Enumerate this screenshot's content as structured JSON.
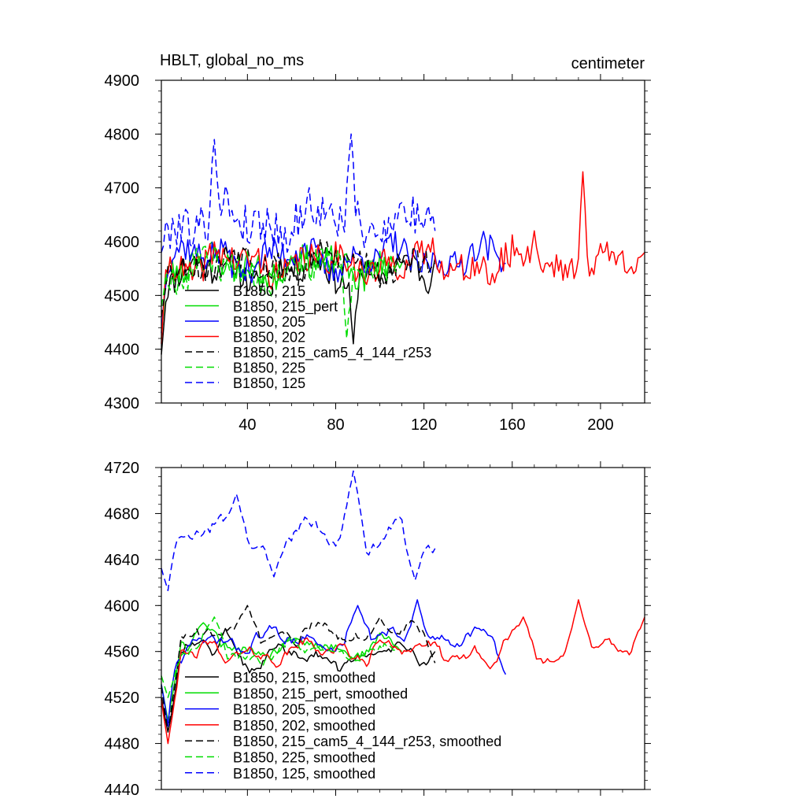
{
  "chart_data": [
    {
      "type": "line",
      "title_left": "HBLT, global_no_ms",
      "title_right": "centimeter",
      "xlabel": "",
      "ylabel": "",
      "xlim": [
        1,
        220
      ],
      "ylim": [
        4300,
        4900
      ],
      "xticks": [
        40,
        80,
        120,
        160,
        200
      ],
      "xtick_labels": [
        "40",
        "80",
        "120",
        "160",
        "200"
      ],
      "yticks": [
        4300,
        4400,
        4500,
        4600,
        4700,
        4800,
        4900
      ],
      "ytick_labels": [
        "4300",
        "4400",
        "4500",
        "4600",
        "4700",
        "4800",
        "4900"
      ],
      "legend_position": "bottom-left",
      "series": [
        {
          "name": "B1850, 215",
          "color": "#000000",
          "dash": "solid",
          "length": 125,
          "level": 4545,
          "amp": 45,
          "noise": 28,
          "seed": 11,
          "anchors": [
            [
              1,
              4390
            ],
            [
              30,
              4560
            ],
            [
              88,
              4410
            ],
            [
              110,
              4560
            ],
            [
              125,
              4570
            ]
          ]
        },
        {
          "name": "B1850, 215_pert",
          "color": "#00dd00",
          "dash": "solid",
          "length": 110,
          "level": 4555,
          "amp": 40,
          "noise": 28,
          "seed": 23,
          "anchors": [
            [
              1,
              4420
            ],
            [
              15,
              4580
            ],
            [
              60,
              4570
            ],
            [
              110,
              4560
            ]
          ]
        },
        {
          "name": "B1850, 205",
          "color": "#0000ff",
          "dash": "solid",
          "length": 157,
          "level": 4570,
          "amp": 45,
          "noise": 28,
          "seed": 37,
          "anchors": [
            [
              1,
              4430
            ],
            [
              30,
              4600
            ],
            [
              100,
              4570
            ],
            [
              157,
              4560
            ]
          ]
        },
        {
          "name": "B1850, 202",
          "color": "#ff0000",
          "dash": "solid",
          "length": 220,
          "level": 4560,
          "amp": 45,
          "noise": 30,
          "seed": 41,
          "anchors": [
            [
              1,
              4410
            ],
            [
              60,
              4570
            ],
            [
              150,
              4520
            ],
            [
              170,
              4620
            ],
            [
              192,
              4730
            ],
            [
              220,
              4580
            ]
          ]
        },
        {
          "name": "B1850, 215_cam5_4_144_r253",
          "color": "#000000",
          "dash": "dashed",
          "length": 125,
          "level": 4560,
          "amp": 40,
          "noise": 28,
          "seed": 53,
          "anchors": [
            [
              1,
              4460
            ],
            [
              40,
              4590
            ],
            [
              110,
              4560
            ],
            [
              125,
              4560
            ]
          ]
        },
        {
          "name": "B1850, 225",
          "color": "#00dd00",
          "dash": "dashed",
          "length": 108,
          "level": 4550,
          "amp": 45,
          "noise": 30,
          "seed": 67,
          "anchors": [
            [
              1,
              4480
            ],
            [
              20,
              4590
            ],
            [
              85,
              4420
            ],
            [
              108,
              4540
            ]
          ]
        },
        {
          "name": "B1850, 125",
          "color": "#0000ff",
          "dash": "dashed",
          "length": 125,
          "level": 4640,
          "amp": 55,
          "noise": 40,
          "seed": 79,
          "anchors": [
            [
              1,
              4580
            ],
            [
              25,
              4790
            ],
            [
              87,
              4800
            ],
            [
              125,
              4620
            ]
          ]
        }
      ]
    },
    {
      "type": "line",
      "title_left": "",
      "title_right": "",
      "xlabel": "",
      "ylabel": "",
      "xlim": [
        1,
        220
      ],
      "ylim": [
        4440,
        4720
      ],
      "xticks": [
        40,
        80,
        120,
        160,
        200
      ],
      "xtick_labels": [],
      "yticks": [
        4440,
        4480,
        4520,
        4560,
        4600,
        4640,
        4680,
        4720
      ],
      "ytick_labels": [
        "4440",
        "4480",
        "4520",
        "4560",
        "4600",
        "4640",
        "4680",
        "4720"
      ],
      "legend_position": "bottom-left",
      "series": [
        {
          "name": "B1850, 215, smoothed",
          "color": "#000000",
          "dash": "solid",
          "length": 125,
          "level": 4555,
          "amp": 20,
          "noise": 9,
          "seed": 12,
          "anchors": [
            [
              4,
              4490
            ],
            [
              20,
              4570
            ],
            [
              30,
              4580
            ],
            [
              100,
              4560
            ],
            [
              125,
              4560
            ]
          ]
        },
        {
          "name": "B1850, 215_pert, smoothed",
          "color": "#00dd00",
          "dash": "solid",
          "length": 110,
          "level": 4565,
          "amp": 18,
          "noise": 9,
          "seed": 24,
          "anchors": [
            [
              4,
              4500
            ],
            [
              20,
              4585
            ],
            [
              60,
              4570
            ],
            [
              110,
              4560
            ]
          ]
        },
        {
          "name": "B1850, 205, smoothed",
          "color": "#0000ff",
          "dash": "solid",
          "length": 157,
          "level": 4570,
          "amp": 18,
          "noise": 9,
          "seed": 38,
          "anchors": [
            [
              4,
              4495
            ],
            [
              10,
              4550
            ],
            [
              90,
              4600
            ],
            [
              117,
              4605
            ],
            [
              157,
              4540
            ]
          ]
        },
        {
          "name": "B1850, 202, smoothed",
          "color": "#ff0000",
          "dash": "solid",
          "length": 220,
          "level": 4560,
          "amp": 18,
          "noise": 9,
          "seed": 42,
          "anchors": [
            [
              4,
              4480
            ],
            [
              30,
              4550
            ],
            [
              100,
              4570
            ],
            [
              150,
              4545
            ],
            [
              165,
              4590
            ],
            [
              190,
              4605
            ],
            [
              220,
              4590
            ]
          ]
        },
        {
          "name": "B1850, 215_cam5_4_144_r253, smoothed",
          "color": "#000000",
          "dash": "dashed",
          "length": 125,
          "level": 4575,
          "amp": 18,
          "noise": 9,
          "seed": 54,
          "anchors": [
            [
              4,
              4490
            ],
            [
              40,
              4600
            ],
            [
              100,
              4590
            ],
            [
              125,
              4550
            ]
          ]
        },
        {
          "name": "B1850, 225, smoothed",
          "color": "#00dd00",
          "dash": "dashed",
          "length": 108,
          "level": 4560,
          "amp": 18,
          "noise": 9,
          "seed": 68,
          "anchors": [
            [
              4,
              4520
            ],
            [
              25,
              4590
            ],
            [
              80,
              4560
            ],
            [
              108,
              4560
            ]
          ]
        },
        {
          "name": "B1850, 125, smoothed",
          "color": "#0000ff",
          "dash": "dashed",
          "length": 125,
          "level": 4660,
          "amp": 25,
          "noise": 10,
          "seed": 80,
          "anchors": [
            [
              4,
              4613
            ],
            [
              10,
              4660
            ],
            [
              35,
              4697
            ],
            [
              52,
              4625
            ],
            [
              88,
              4717
            ],
            [
              116,
              4622
            ],
            [
              124,
              4646
            ]
          ]
        }
      ]
    }
  ]
}
